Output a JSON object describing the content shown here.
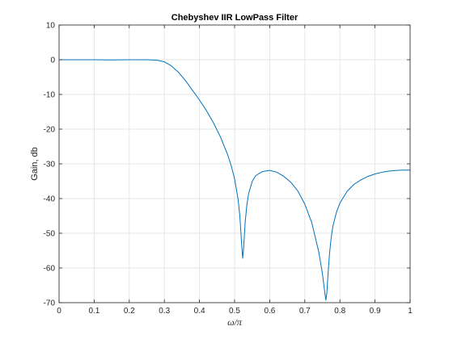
{
  "chart_data": {
    "type": "line",
    "title": "Chebyshev IIR LowPass Filter",
    "xlabel": "ω/π",
    "ylabel": "Gain, db",
    "xlim": [
      0,
      1
    ],
    "ylim": [
      -70,
      10
    ],
    "xticks": [
      "0",
      "0.1",
      "0.2",
      "0.3",
      "0.4",
      "0.5",
      "0.6",
      "0.7",
      "0.8",
      "0.9",
      "1"
    ],
    "yticks": [
      "10",
      "0",
      "-10",
      "-20",
      "-30",
      "-40",
      "-50",
      "-60",
      "-70"
    ],
    "grid": true,
    "series_color": "#0072bd",
    "series": [
      {
        "x": [
          0,
          0.05,
          0.1,
          0.15,
          0.2,
          0.25,
          0.28,
          0.3,
          0.32,
          0.34,
          0.36,
          0.38,
          0.4,
          0.42,
          0.44,
          0.46,
          0.48,
          0.49,
          0.5,
          0.51,
          0.515,
          0.52,
          0.523,
          0.526,
          0.53,
          0.535,
          0.54,
          0.55,
          0.56,
          0.58,
          0.6,
          0.62,
          0.64,
          0.66,
          0.68,
          0.7,
          0.72,
          0.74,
          0.75,
          0.755,
          0.76,
          0.763,
          0.766,
          0.77,
          0.775,
          0.78,
          0.79,
          0.8,
          0.82,
          0.84,
          0.86,
          0.88,
          0.9,
          0.92,
          0.94,
          0.96,
          0.98,
          1.0
        ],
        "y": [
          0,
          0,
          0,
          -0.05,
          0,
          0,
          -0.15,
          -0.6,
          -1.8,
          -3.6,
          -6,
          -8.8,
          -11.6,
          -14.7,
          -18.2,
          -22.3,
          -27.3,
          -30.4,
          -34.3,
          -40.2,
          -45,
          -53,
          -57.2,
          -54,
          -47,
          -41.8,
          -38.6,
          -35.1,
          -33.4,
          -32.2,
          -31.9,
          -32.4,
          -33.6,
          -35.3,
          -37.8,
          -41.6,
          -47,
          -55.5,
          -61.5,
          -65.5,
          -69.3,
          -67,
          -62,
          -56.3,
          -51.4,
          -48,
          -44,
          -41.3,
          -38,
          -35.9,
          -34.6,
          -33.6,
          -32.9,
          -32.4,
          -32.1,
          -31.9,
          -31.8,
          -31.8
        ]
      }
    ]
  }
}
